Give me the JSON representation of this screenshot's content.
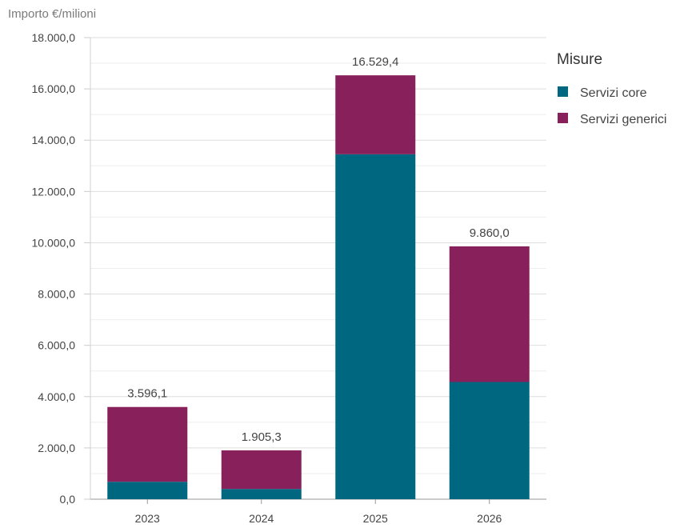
{
  "chart_data": {
    "type": "bar",
    "stacked": true,
    "ylabel": "Importo €/milioni",
    "ylim": [
      0,
      18000
    ],
    "y_ticks": [
      0,
      2000,
      4000,
      6000,
      8000,
      10000,
      12000,
      14000,
      16000,
      18000
    ],
    "y_tick_labels": [
      "0,0",
      "2.000,0",
      "4.000,0",
      "6.000,0",
      "8.000,0",
      "10.000,0",
      "12.000,0",
      "14.000,0",
      "16.000,0",
      "18.000,0"
    ],
    "categories": [
      "2023",
      "2024",
      "2025",
      "2026"
    ],
    "series": [
      {
        "name": "Servizi core",
        "color": "#006781",
        "values": [
          680,
          400,
          13450,
          4570
        ]
      },
      {
        "name": "Servizi generici",
        "color": "#88215b",
        "values": [
          2916.1,
          1505.3,
          3079.4,
          5290
        ]
      }
    ],
    "totals": [
      "3.596,1",
      "1.905,3",
      "16.529,4",
      "9.860,0"
    ],
    "grid": true,
    "legend": {
      "title": "Misure",
      "position": "top-right"
    }
  }
}
